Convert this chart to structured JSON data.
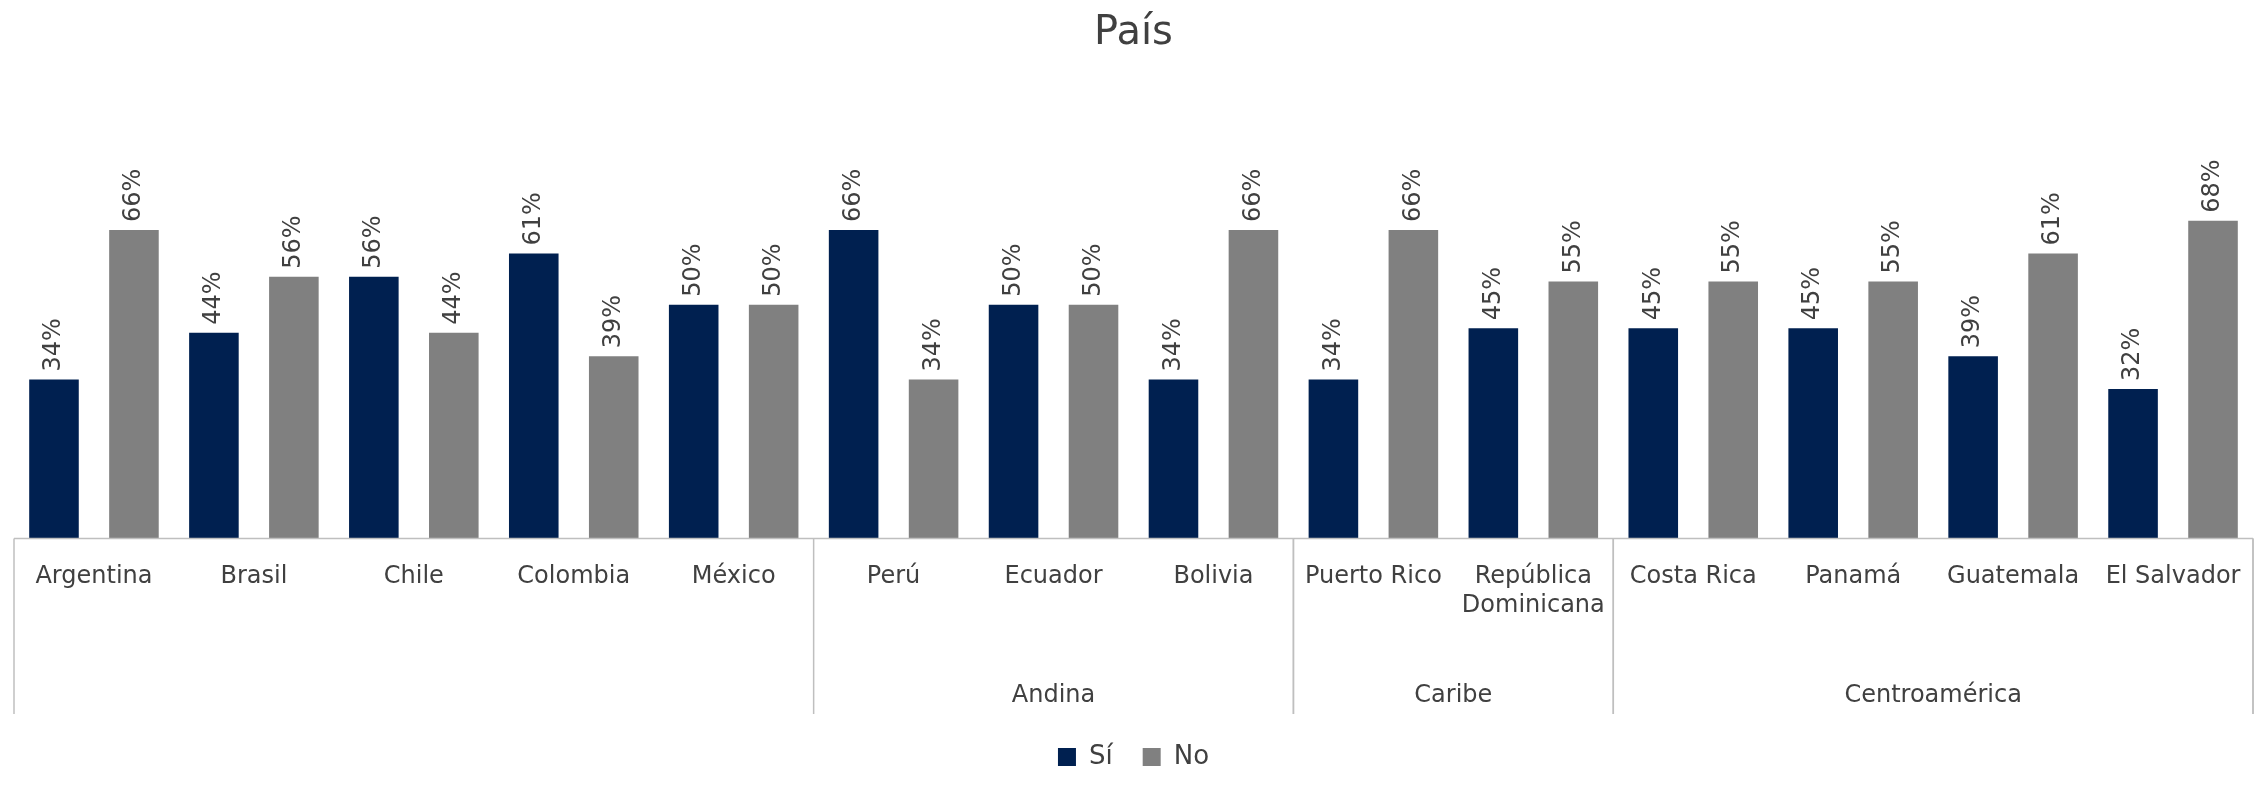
{
  "chart_data": {
    "type": "bar",
    "title": "País",
    "categories": [
      "Argentina",
      "Brasil",
      "Chile",
      "Colombia",
      "México",
      "Perú",
      "Ecuador",
      "Bolivia",
      "Puerto Rico",
      "República Dominicana",
      "Costa Rica",
      "Panamá",
      "Guatemala",
      "El Salvador"
    ],
    "series": [
      {
        "name": "Sí",
        "color": "#002050",
        "values": [
          34,
          44,
          56,
          61,
          50,
          66,
          50,
          34,
          34,
          45,
          45,
          45,
          39,
          32
        ],
        "value_labels": [
          "34%",
          "44%",
          "56%",
          "61%",
          "50%",
          "66%",
          "50%",
          "34%",
          "34%",
          "45%",
          "45%",
          "45%",
          "39%",
          "32%"
        ]
      },
      {
        "name": "No",
        "color": "#808080",
        "values": [
          66,
          56,
          44,
          39,
          50,
          34,
          50,
          66,
          66,
          55,
          55,
          55,
          61,
          68
        ],
        "value_labels": [
          "66%",
          "56%",
          "44%",
          "39%",
          "50%",
          "34%",
          "50%",
          "66%",
          "66%",
          "55%",
          "55%",
          "55%",
          "61%",
          "68%"
        ]
      }
    ],
    "annotations": [
      "Andina",
      "Caribe",
      "Centroamérica"
    ],
    "legend": "bottom"
  }
}
